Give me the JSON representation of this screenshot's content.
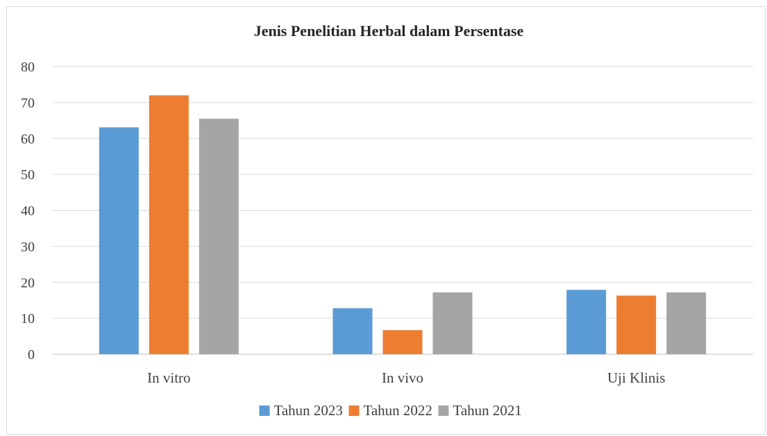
{
  "chart_data": {
    "type": "bar",
    "title": "Jenis Penelitian Herbal dalam Persentase",
    "categories": [
      "In vitro",
      "In vivo",
      "Uji Klinis"
    ],
    "series": [
      {
        "name": "Tahun 2023",
        "color": "#5b9bd5",
        "values": [
          63.1,
          12.8,
          17.9
        ]
      },
      {
        "name": "Tahun 2022",
        "color": "#ed7d31",
        "values": [
          72.0,
          6.7,
          16.3
        ]
      },
      {
        "name": "Tahun 2021",
        "color": "#a5a5a5",
        "values": [
          65.5,
          17.2,
          17.2
        ]
      }
    ],
    "ylim": [
      0,
      80
    ],
    "yticks": [
      0,
      10,
      20,
      30,
      40,
      50,
      60,
      70,
      80
    ],
    "grid": true,
    "legend_position": "bottom"
  }
}
